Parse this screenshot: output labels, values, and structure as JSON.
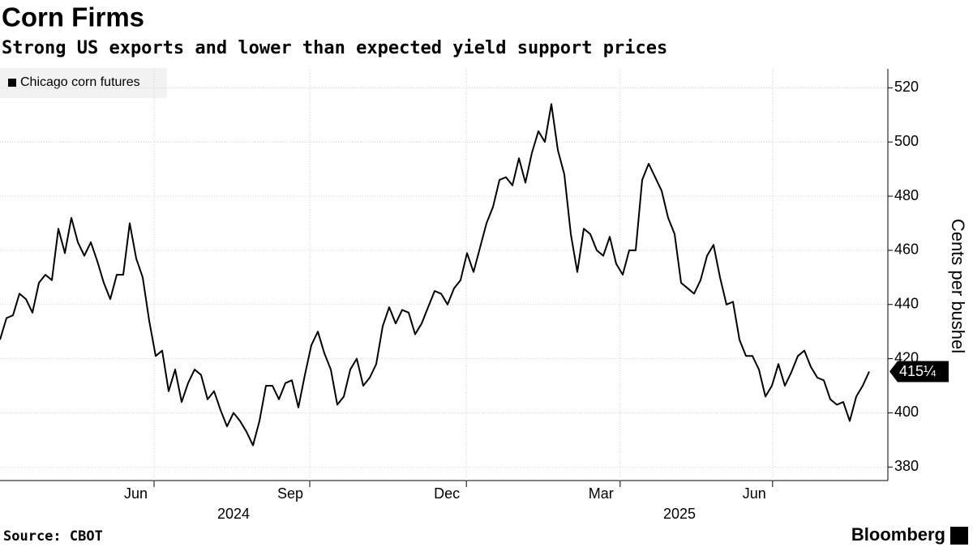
{
  "chart_data": {
    "type": "line",
    "title": "Corn Firms",
    "subtitle": "Strong US exports and lower than expected yield support prices",
    "y_label": "Cents per bushel",
    "source": "Source: CBOT",
    "brand": "Bloomberg",
    "series": [
      {
        "name": "Chicago corn futures",
        "color": "#000000",
        "values": [
          427,
          435,
          436,
          444,
          442,
          437,
          448,
          451,
          449,
          468,
          459,
          472,
          463,
          458,
          463,
          456,
          448,
          442,
          451,
          451,
          470,
          457,
          450,
          434,
          421,
          423,
          408,
          416,
          404,
          411,
          416,
          414,
          405,
          408,
          401,
          395,
          400,
          397,
          393,
          388,
          397,
          410,
          410,
          405,
          411,
          412,
          402,
          414,
          425,
          430,
          422,
          416,
          403,
          406,
          416,
          420,
          410,
          413,
          418,
          432,
          439,
          433,
          438,
          437,
          429,
          433,
          439,
          445,
          444,
          440,
          446,
          449,
          459,
          452,
          461,
          470,
          476,
          486,
          487,
          484,
          494,
          485,
          496,
          504,
          500,
          514,
          497,
          488,
          466,
          452,
          468,
          466,
          460,
          458,
          465,
          455,
          451,
          460,
          460,
          486,
          492,
          487,
          482,
          472,
          466,
          448,
          446,
          444,
          449,
          458,
          462,
          450,
          440,
          441,
          427,
          421,
          421,
          416,
          406,
          410,
          418,
          410,
          415,
          421,
          423,
          417,
          413,
          412,
          405,
          403,
          404,
          397,
          406,
          410,
          415.25
        ],
        "last_label": "415¼"
      }
    ],
    "xlim": [
      0,
      134
    ],
    "xticks": [
      {
        "value": 23.75,
        "label": "Jun"
      },
      {
        "value": 47.75,
        "label": "Sep"
      },
      {
        "value": 71.9,
        "label": "Dec"
      },
      {
        "value": 95.6,
        "label": "Mar"
      },
      {
        "value": 119.1,
        "label": "Jun"
      }
    ],
    "xyears": [
      {
        "value": 36,
        "label": "2024"
      },
      {
        "value": 104.75,
        "label": "2025"
      }
    ],
    "ylim": [
      375,
      527
    ],
    "yticks": [
      380,
      400,
      420,
      440,
      460,
      480,
      500,
      520
    ],
    "grid": true
  }
}
